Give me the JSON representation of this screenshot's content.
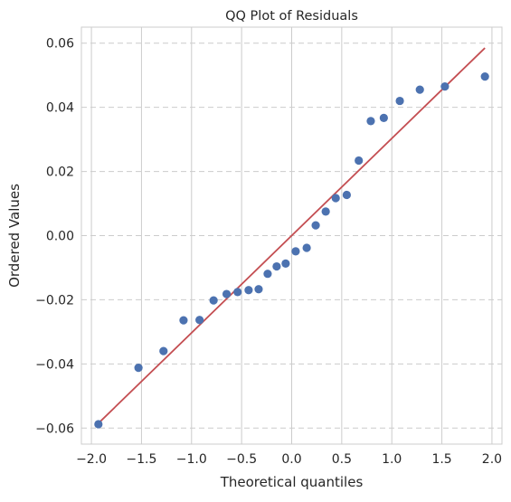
{
  "chart_data": {
    "type": "scatter",
    "title": "QQ Plot of Residuals",
    "xlabel": "Theoretical quantiles",
    "ylabel": "Ordered Values",
    "xlim": [
      -2.1,
      2.1
    ],
    "ylim": [
      -0.065,
      0.065
    ],
    "x_ticks": [
      -2.0,
      -1.5,
      -1.0,
      -0.5,
      0.0,
      0.5,
      1.0,
      1.5,
      2.0
    ],
    "x_tick_labels": [
      "−2.0",
      "−1.5",
      "−1.0",
      "−0.5",
      "0.0",
      "0.5",
      "1.0",
      "1.5",
      "2.0"
    ],
    "y_ticks": [
      -0.06,
      -0.04,
      -0.02,
      0.0,
      0.02,
      0.04,
      0.06
    ],
    "y_tick_labels": [
      "−0.06",
      "−0.04",
      "−0.02",
      "0.00",
      "0.02",
      "0.04",
      "0.06"
    ],
    "grid": {
      "vertical": "solid",
      "horizontal": "dashed"
    },
    "series": [
      {
        "kind": "points",
        "color": "#4c72b0",
        "x": [
          -1.93,
          -1.53,
          -1.28,
          -1.08,
          -0.92,
          -0.78,
          -0.65,
          -0.54,
          -0.43,
          -0.33,
          -0.24,
          -0.15,
          -0.06,
          0.04,
          0.15,
          0.24,
          0.34,
          0.44,
          0.55,
          0.67,
          0.79,
          0.92,
          1.08,
          1.28,
          1.53,
          1.93
        ],
        "y": [
          -0.0588,
          -0.0412,
          -0.036,
          -0.0264,
          -0.0263,
          -0.0202,
          -0.0182,
          -0.0176,
          -0.017,
          -0.0167,
          -0.0119,
          -0.0096,
          -0.0087,
          -0.0049,
          -0.0038,
          0.0032,
          0.0075,
          0.0117,
          0.0127,
          0.0234,
          0.0357,
          0.0367,
          0.042,
          0.0455,
          0.0465,
          0.0496
        ]
      },
      {
        "kind": "line",
        "color": "#c44e52",
        "x": [
          -1.93,
          1.93
        ],
        "y": [
          -0.0585,
          0.0585
        ]
      }
    ]
  }
}
